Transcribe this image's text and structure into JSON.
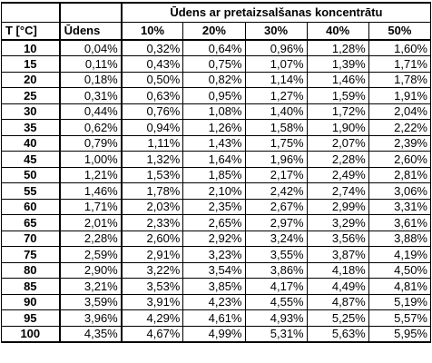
{
  "table": {
    "group_header": "Ūdens ar pretaizsalšanas koncentrātu",
    "temp_header": "T [°C]",
    "water_header": "Ūdens",
    "concentration_headers": [
      "10%",
      "20%",
      "30%",
      "40%",
      "50%"
    ],
    "rows": [
      {
        "t": "10",
        "values": [
          "0,04%",
          "0,32%",
          "0,64%",
          "0,96%",
          "1,28%",
          "1,60%"
        ]
      },
      {
        "t": "15",
        "values": [
          "0,11%",
          "0,43%",
          "0,75%",
          "1,07%",
          "1,39%",
          "1,71%"
        ]
      },
      {
        "t": "20",
        "values": [
          "0,18%",
          "0,50%",
          "0,82%",
          "1,14%",
          "1,46%",
          "1,78%"
        ]
      },
      {
        "t": "25",
        "values": [
          "0,31%",
          "0,63%",
          "0,95%",
          "1,27%",
          "1,59%",
          "1,91%"
        ]
      },
      {
        "t": "30",
        "values": [
          "0,44%",
          "0,76%",
          "1,08%",
          "1,40%",
          "1,72%",
          "2,04%"
        ]
      },
      {
        "t": "35",
        "values": [
          "0,62%",
          "0,94%",
          "1,26%",
          "1,58%",
          "1,90%",
          "2,22%"
        ]
      },
      {
        "t": "40",
        "values": [
          "0,79%",
          "1,11%",
          "1,43%",
          "1,75%",
          "2,07%",
          "2,39%"
        ]
      },
      {
        "t": "45",
        "values": [
          "1,00%",
          "1,32%",
          "1,64%",
          "1,96%",
          "2,28%",
          "2,60%"
        ]
      },
      {
        "t": "50",
        "values": [
          "1,21%",
          "1,53%",
          "1,85%",
          "2,17%",
          "2,49%",
          "2,81%"
        ]
      },
      {
        "t": "55",
        "values": [
          "1,46%",
          "1,78%",
          "2,10%",
          "2,42%",
          "2,74%",
          "3,06%"
        ]
      },
      {
        "t": "60",
        "values": [
          "1,71%",
          "2,03%",
          "2,35%",
          "2,67%",
          "2,99%",
          "3,31%"
        ]
      },
      {
        "t": "65",
        "values": [
          "2,01%",
          "2,33%",
          "2,65%",
          "2,97%",
          "3,29%",
          "3,61%"
        ]
      },
      {
        "t": "70",
        "values": [
          "2,28%",
          "2,60%",
          "2,92%",
          "3,24%",
          "3,56%",
          "3,88%"
        ]
      },
      {
        "t": "75",
        "values": [
          "2,59%",
          "2,91%",
          "3,23%",
          "3,55%",
          "3,87%",
          "4,19%"
        ]
      },
      {
        "t": "80",
        "values": [
          "2,90%",
          "3,22%",
          "3,54%",
          "3,86%",
          "4,18%",
          "4,50%"
        ]
      },
      {
        "t": "85",
        "values": [
          "3,21%",
          "3,53%",
          "3,85%",
          "4,17%",
          "4,49%",
          "4,81%"
        ]
      },
      {
        "t": "90",
        "values": [
          "3,59%",
          "3,91%",
          "4,23%",
          "4,55%",
          "4,87%",
          "5,19%"
        ]
      },
      {
        "t": "95",
        "values": [
          "3,96%",
          "4,29%",
          "4,61%",
          "4,93%",
          "5,25%",
          "5,57%"
        ]
      },
      {
        "t": "100",
        "values": [
          "4,35%",
          "4,67%",
          "4,99%",
          "5,31%",
          "5,63%",
          "5,95%"
        ]
      }
    ]
  }
}
